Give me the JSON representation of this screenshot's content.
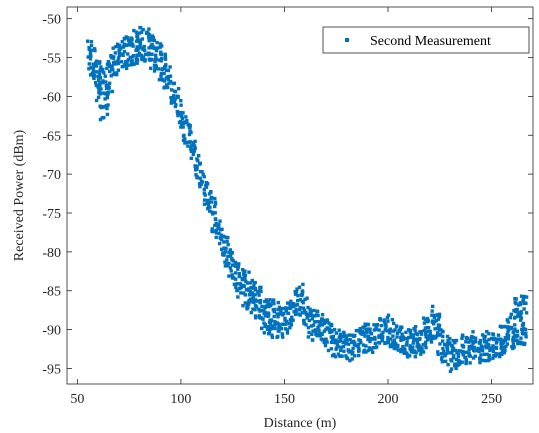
{
  "chart_data": {
    "type": "scatter",
    "xlabel": "Distance (m)",
    "ylabel": "Received Power (dBm)",
    "xlim": [
      45,
      270
    ],
    "ylim": [
      -97,
      -48.5
    ],
    "xticks": [
      50,
      100,
      150,
      200,
      250
    ],
    "yticks": [
      -95,
      -90,
      -85,
      -80,
      -75,
      -70,
      -65,
      -60,
      -55,
      -50
    ],
    "grid": false,
    "legend_position": "top-right",
    "series": [
      {
        "name": "Second Measurement",
        "color": "#0072BD",
        "marker": "point",
        "profile": [
          [
            56,
            -52.5,
            -57.5
          ],
          [
            58,
            -53.5,
            -58.5
          ],
          [
            60,
            -55.0,
            -61.0
          ],
          [
            62,
            -56.0,
            -63.0
          ],
          [
            64,
            -55.5,
            -62.5
          ],
          [
            66,
            -54.5,
            -59.5
          ],
          [
            68,
            -53.5,
            -57.5
          ],
          [
            70,
            -53.0,
            -57.0
          ],
          [
            72,
            -52.5,
            -56.5
          ],
          [
            74,
            -52.0,
            -56.5
          ],
          [
            76,
            -51.5,
            -56.0
          ],
          [
            78,
            -51.3,
            -56.0
          ],
          [
            80,
            -51.0,
            -55.5
          ],
          [
            82,
            -51.0,
            -55.5
          ],
          [
            84,
            -51.2,
            -56.0
          ],
          [
            86,
            -51.5,
            -56.5
          ],
          [
            88,
            -52.0,
            -57.0
          ],
          [
            90,
            -53.0,
            -58.0
          ],
          [
            92,
            -54.5,
            -59.0
          ],
          [
            94,
            -56.0,
            -60.0
          ],
          [
            96,
            -57.5,
            -61.0
          ],
          [
            98,
            -59.0,
            -62.5
          ],
          [
            100,
            -60.5,
            -64.0
          ],
          [
            102,
            -62.0,
            -66.0
          ],
          [
            104,
            -63.5,
            -67.5
          ],
          [
            106,
            -65.5,
            -69.0
          ],
          [
            108,
            -67.0,
            -70.5
          ],
          [
            110,
            -68.5,
            -72.0
          ],
          [
            112,
            -70.0,
            -74.0
          ],
          [
            114,
            -71.5,
            -76.0
          ],
          [
            116,
            -73.0,
            -77.5
          ],
          [
            118,
            -75.0,
            -79.0
          ],
          [
            120,
            -76.5,
            -80.5
          ],
          [
            122,
            -78.0,
            -82.0
          ],
          [
            124,
            -79.5,
            -83.5
          ],
          [
            126,
            -80.5,
            -85.0
          ],
          [
            128,
            -81.5,
            -86.0
          ],
          [
            130,
            -82.0,
            -87.0
          ],
          [
            132,
            -82.5,
            -87.5
          ],
          [
            134,
            -83.0,
            -88.0
          ],
          [
            136,
            -83.5,
            -88.5
          ],
          [
            138,
            -84.5,
            -89.5
          ],
          [
            140,
            -85.5,
            -90.5
          ],
          [
            142,
            -86.0,
            -91.0
          ],
          [
            144,
            -86.0,
            -91.0
          ],
          [
            146,
            -86.5,
            -91.0
          ],
          [
            148,
            -87.0,
            -91.0
          ],
          [
            150,
            -87.0,
            -91.0
          ],
          [
            152,
            -86.5,
            -90.5
          ],
          [
            154,
            -85.5,
            -89.5
          ],
          [
            156,
            -84.5,
            -88.5
          ],
          [
            158,
            -84.0,
            -88.5
          ],
          [
            160,
            -85.5,
            -90.0
          ],
          [
            162,
            -87.0,
            -91.0
          ],
          [
            164,
            -87.5,
            -91.5
          ],
          [
            166,
            -87.5,
            -91.5
          ],
          [
            168,
            -88.0,
            -92.0
          ],
          [
            170,
            -88.5,
            -92.5
          ],
          [
            172,
            -89.0,
            -93.0
          ],
          [
            174,
            -89.5,
            -93.5
          ],
          [
            176,
            -90.0,
            -94.0
          ],
          [
            178,
            -90.0,
            -94.0
          ],
          [
            180,
            -90.5,
            -94.0
          ],
          [
            182,
            -90.5,
            -94.0
          ],
          [
            184,
            -90.0,
            -93.5
          ],
          [
            186,
            -89.5,
            -93.5
          ],
          [
            188,
            -89.0,
            -93.0
          ],
          [
            190,
            -89.0,
            -93.0
          ],
          [
            192,
            -89.5,
            -93.0
          ],
          [
            194,
            -89.0,
            -92.5
          ],
          [
            196,
            -88.5,
            -92.0
          ],
          [
            198,
            -88.0,
            -92.0
          ],
          [
            200,
            -88.0,
            -92.0
          ],
          [
            202,
            -88.5,
            -92.5
          ],
          [
            204,
            -89.0,
            -93.0
          ],
          [
            206,
            -89.5,
            -93.0
          ],
          [
            208,
            -90.0,
            -93.5
          ],
          [
            210,
            -90.0,
            -94.0
          ],
          [
            212,
            -89.5,
            -93.5
          ],
          [
            214,
            -89.0,
            -93.5
          ],
          [
            216,
            -89.5,
            -93.5
          ],
          [
            218,
            -88.5,
            -93.0
          ],
          [
            220,
            -88.0,
            -92.5
          ],
          [
            222,
            -87.0,
            -92.0
          ],
          [
            224,
            -88.0,
            -93.5
          ],
          [
            226,
            -90.0,
            -94.5
          ],
          [
            228,
            -90.5,
            -95.0
          ],
          [
            230,
            -91.0,
            -95.5
          ],
          [
            232,
            -91.0,
            -95.0
          ],
          [
            234,
            -91.0,
            -95.0
          ],
          [
            236,
            -90.5,
            -94.5
          ],
          [
            238,
            -91.0,
            -94.5
          ],
          [
            240,
            -90.5,
            -94.5
          ],
          [
            242,
            -90.0,
            -94.0
          ],
          [
            244,
            -90.5,
            -94.5
          ],
          [
            246,
            -90.5,
            -94.0
          ],
          [
            248,
            -90.0,
            -94.0
          ],
          [
            250,
            -90.5,
            -94.0
          ],
          [
            252,
            -90.0,
            -93.5
          ],
          [
            254,
            -89.5,
            -93.5
          ],
          [
            256,
            -89.0,
            -93.0
          ],
          [
            258,
            -88.5,
            -92.5
          ],
          [
            260,
            -87.5,
            -92.5
          ],
          [
            262,
            -86.0,
            -92.5
          ],
          [
            264,
            -85.5,
            -92.0
          ],
          [
            266,
            -85.5,
            -92.0
          ]
        ]
      }
    ]
  }
}
